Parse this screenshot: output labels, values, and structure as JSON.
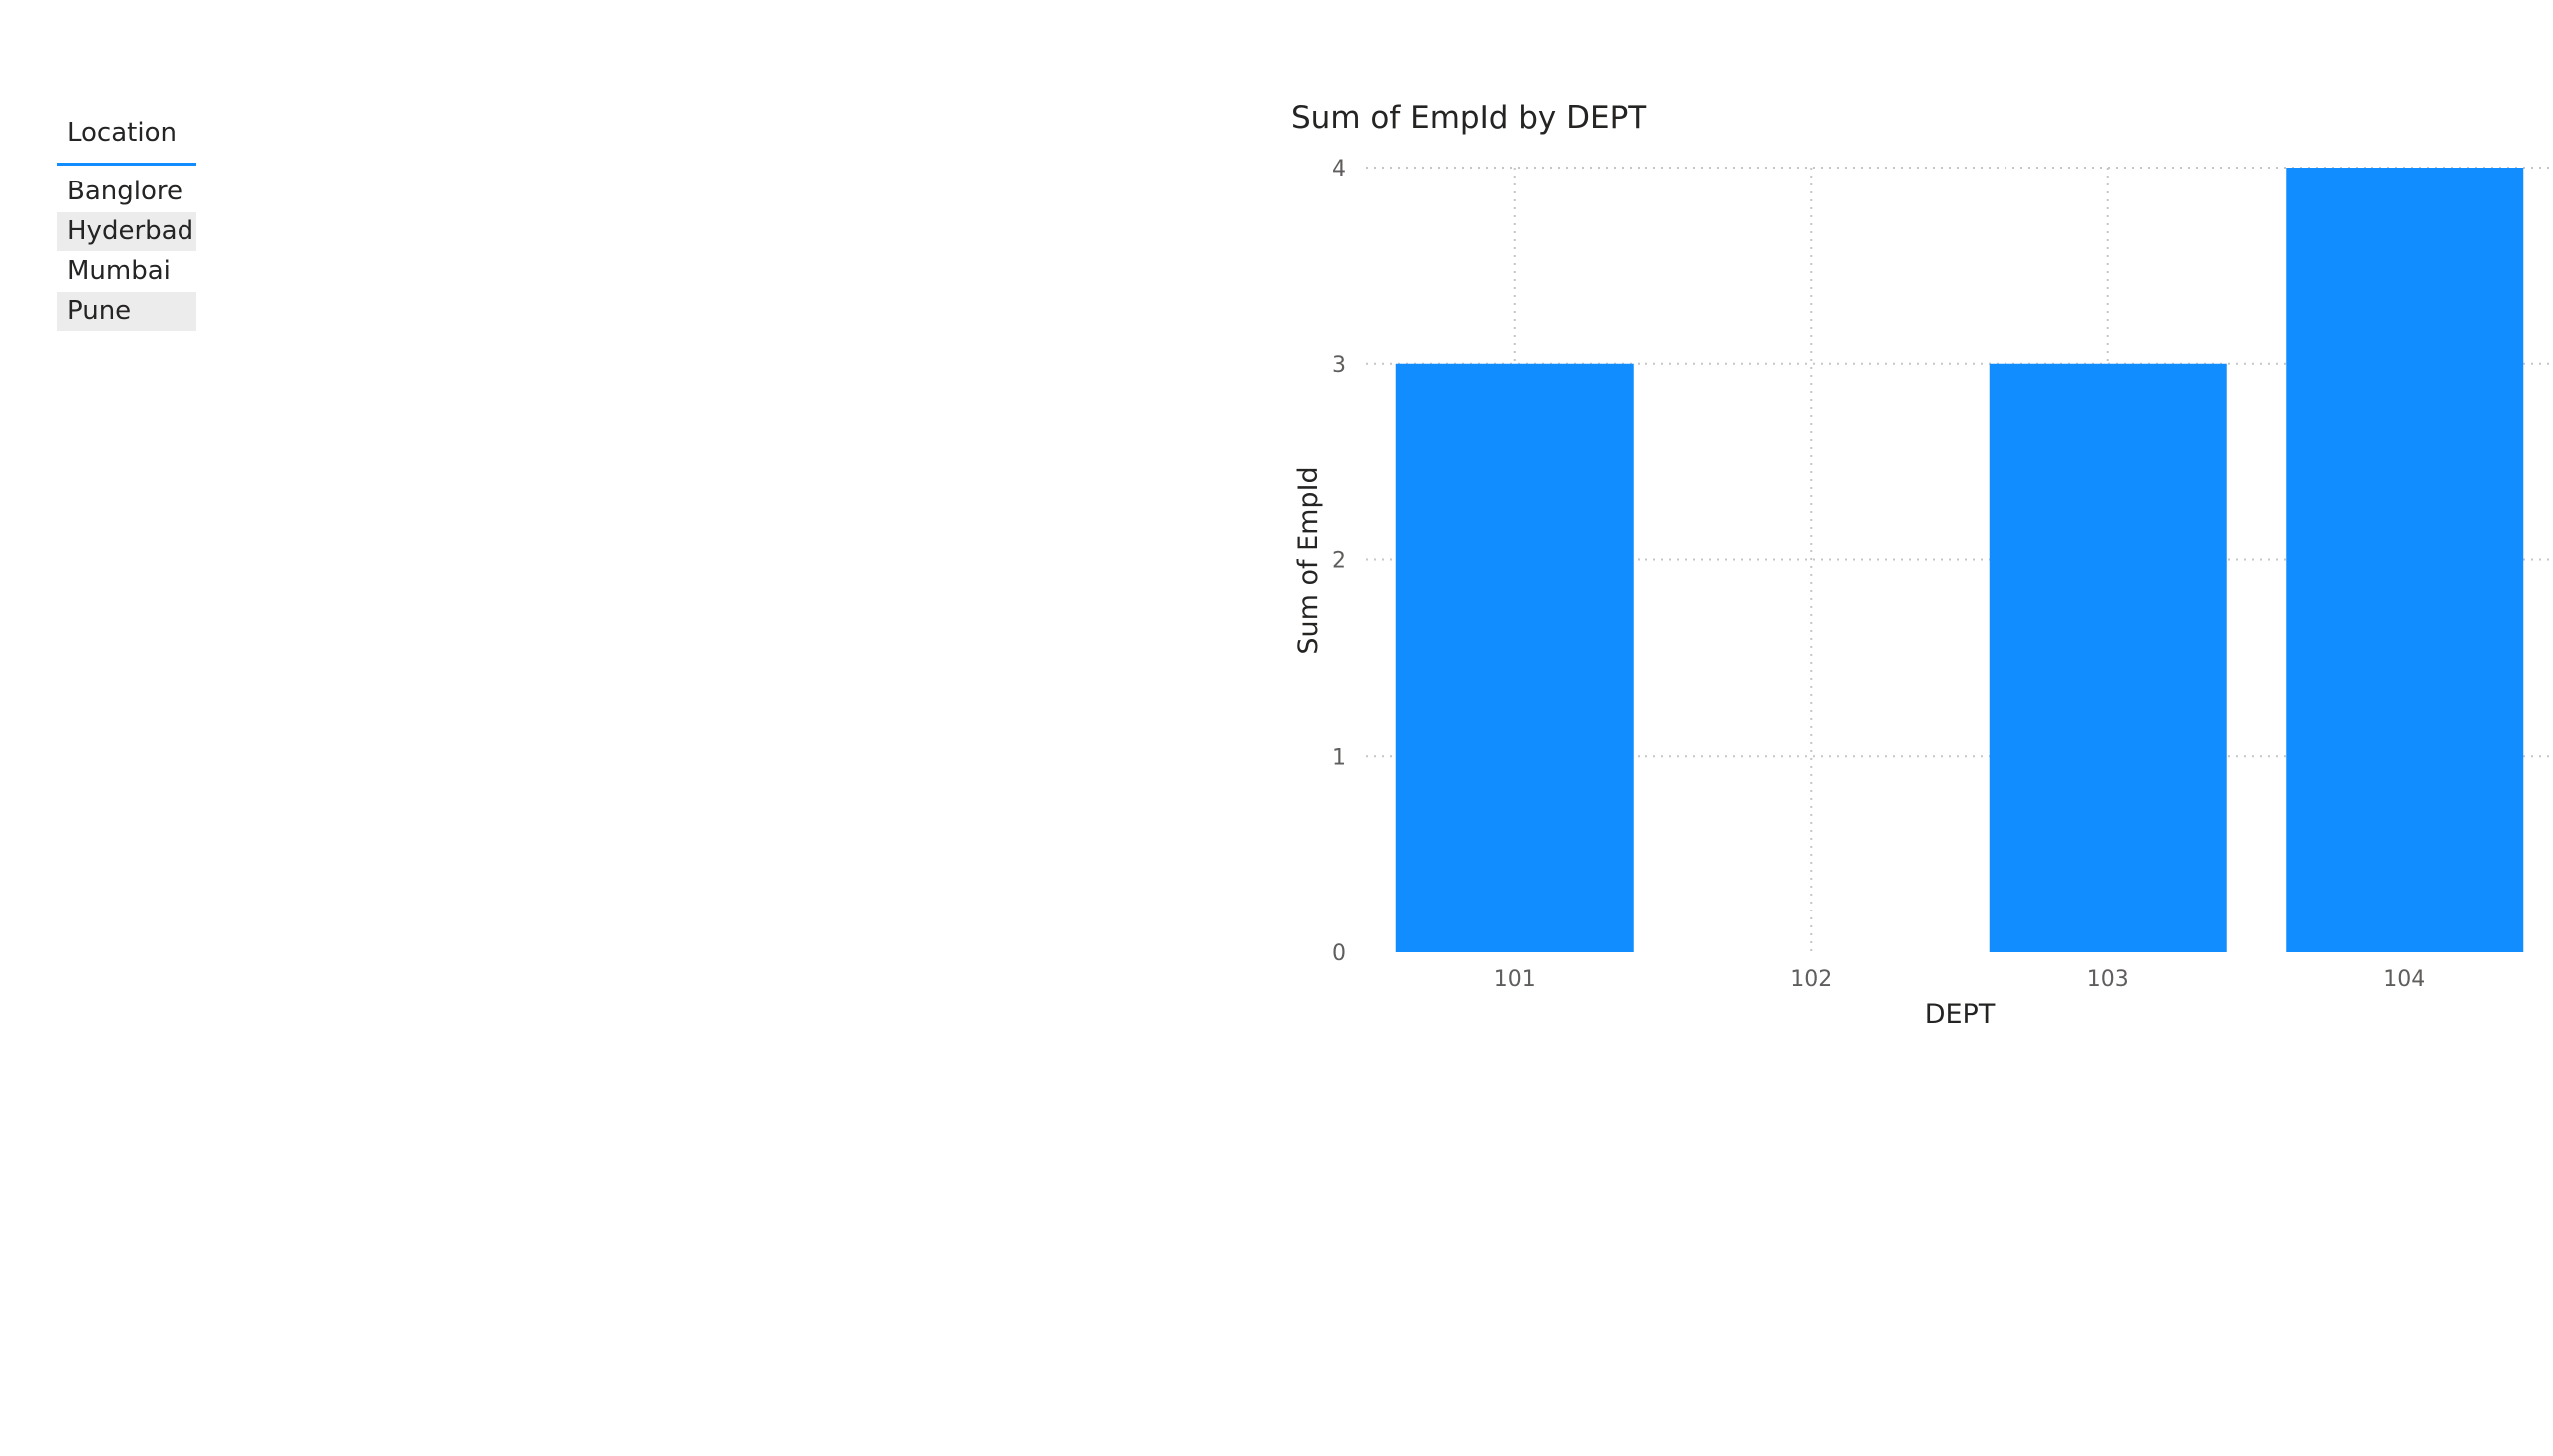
{
  "slicer": {
    "title": "Location",
    "items": [
      {
        "label": "Banglore",
        "shaded": false
      },
      {
        "label": "Hyderbad",
        "shaded": true
      },
      {
        "label": "Mumbai",
        "shaded": false
      },
      {
        "label": "Pune",
        "shaded": true
      }
    ]
  },
  "colors": {
    "bar": "#118dff",
    "slicer_underline": "#118dff",
    "slicer_item_shade": "#ececec",
    "gridline": "#c8c6c4",
    "tick_text": "#605e5c",
    "title_text": "#252423"
  },
  "chart_data": {
    "type": "bar",
    "title": "Sum of EmpId by DEPT",
    "xlabel": "DEPT",
    "ylabel": "Sum of EmpId",
    "categories": [
      "101",
      "102",
      "103",
      "104"
    ],
    "values": [
      3,
      0,
      3,
      4
    ],
    "ylim": [
      0,
      4
    ],
    "yticks": [
      0,
      1,
      2,
      3,
      4
    ],
    "grid": true,
    "legend": "none"
  }
}
